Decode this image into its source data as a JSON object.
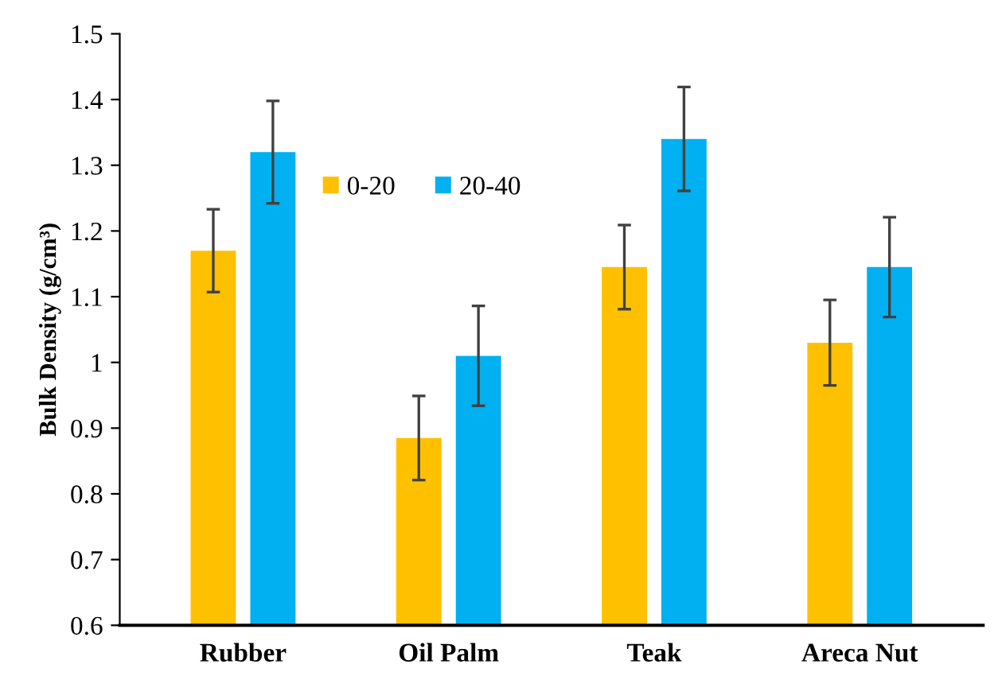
{
  "chart_data": {
    "type": "bar",
    "ylabel": "Bulk Density (g/cm³)",
    "categories": [
      "Rubber",
      "Oil Palm",
      "Teak",
      "Areca Nut"
    ],
    "series": [
      {
        "name": "0-20",
        "color": "#ffc000",
        "values": [
          1.17,
          0.885,
          1.145,
          1.03
        ],
        "errors": [
          0.063,
          0.064,
          0.064,
          0.065
        ]
      },
      {
        "name": "20-40",
        "color": "#00b0f0",
        "values": [
          1.32,
          1.01,
          1.34,
          1.145
        ],
        "errors": [
          0.078,
          0.076,
          0.079,
          0.076
        ]
      }
    ],
    "ylim": [
      0.6,
      1.5
    ],
    "yticks": [
      0.6,
      0.7,
      0.8,
      0.9,
      1,
      1.1,
      1.2,
      1.3,
      1.4,
      1.5
    ],
    "grid": false,
    "legend": "top"
  }
}
